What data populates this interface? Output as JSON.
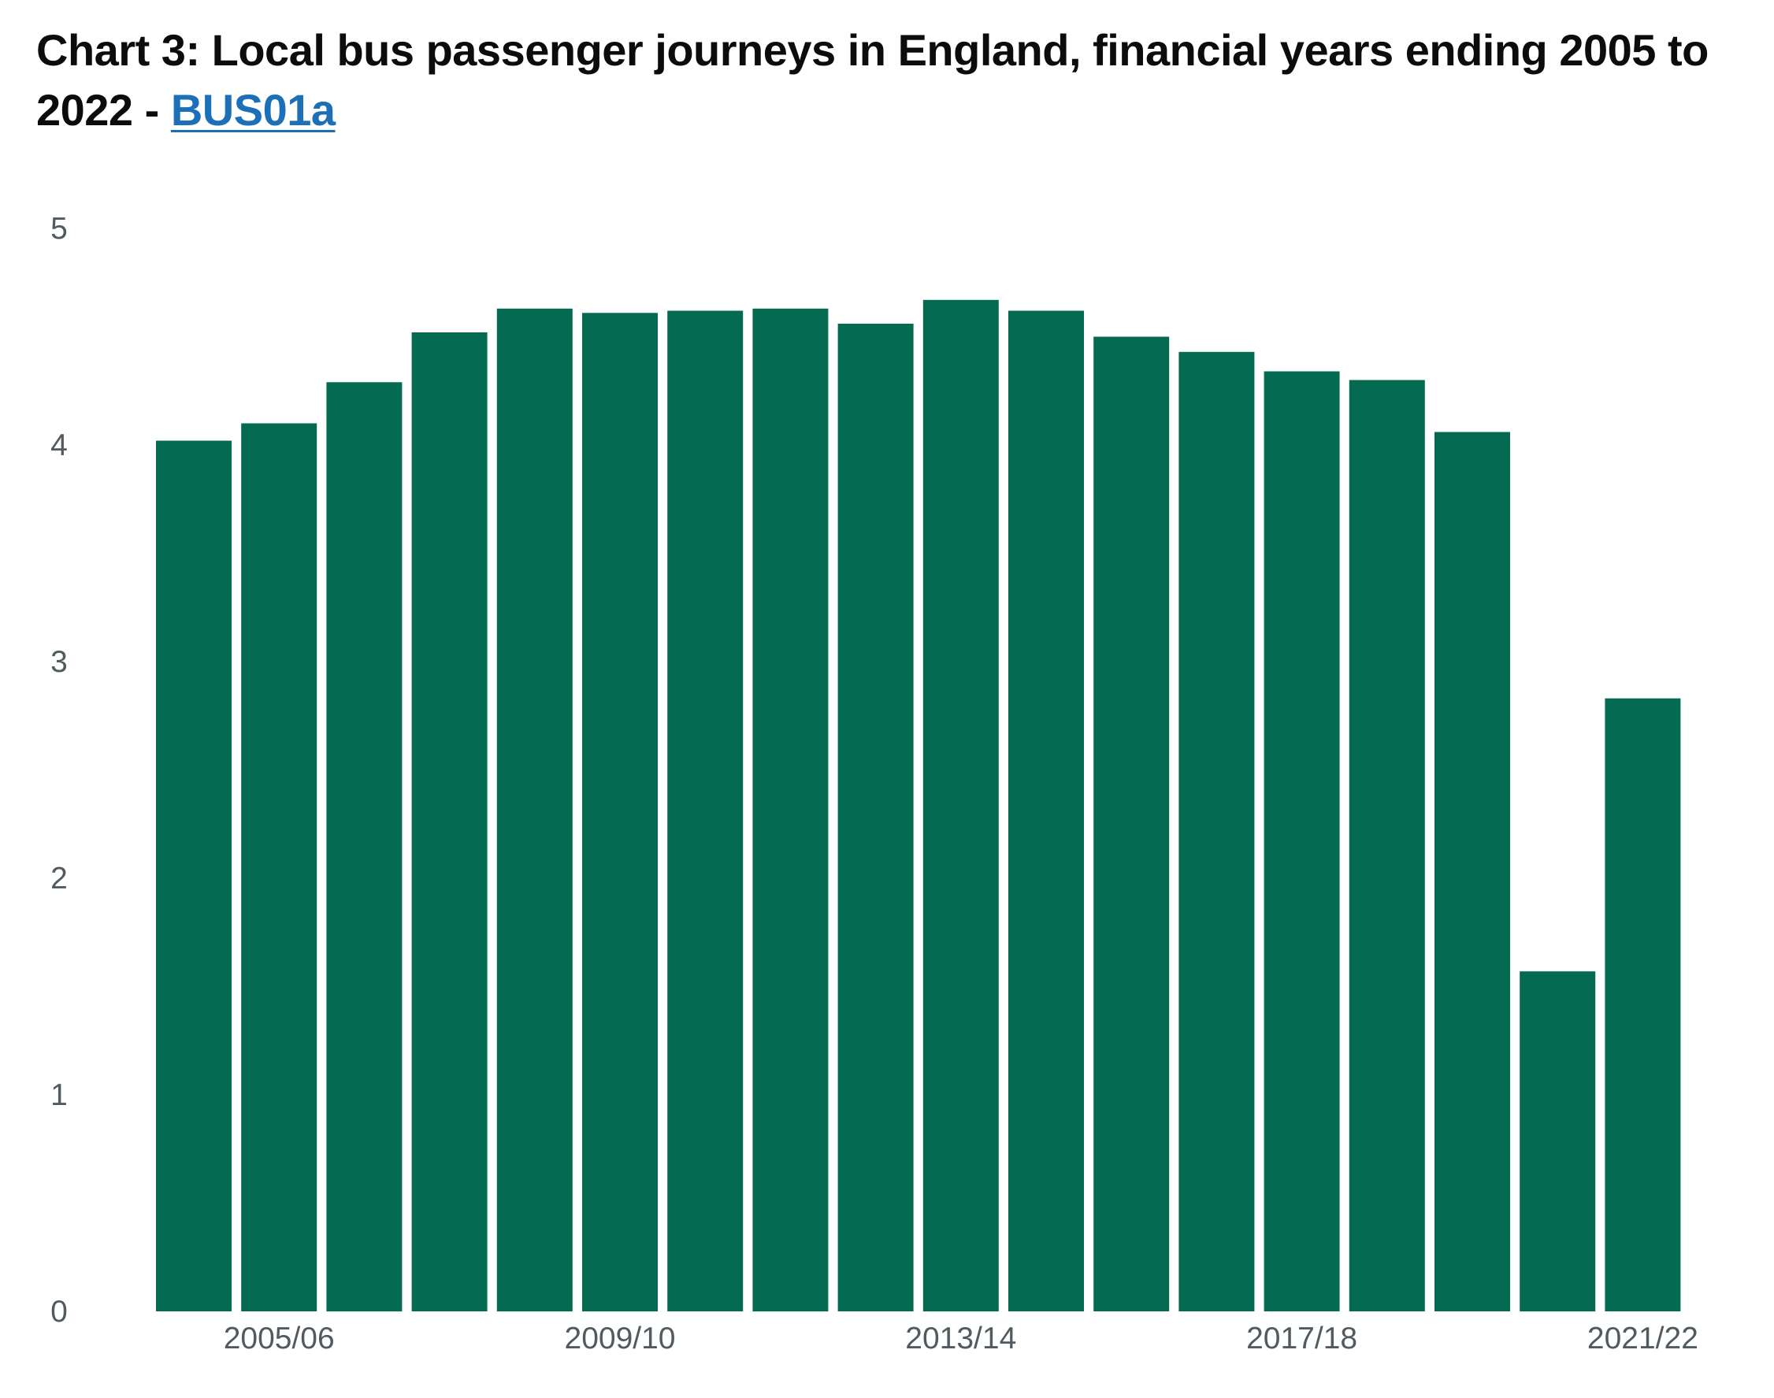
{
  "header": {
    "title_prefix": "Chart 3: Local bus passenger journeys in England, financial years ending 2005 to 2022 - ",
    "title_link": "BUS01a"
  },
  "colors": {
    "bar": "#046a52",
    "link": "#1d70b8",
    "text": "#0b0c0c",
    "tick": "#505a5f"
  },
  "chart_data": {
    "type": "bar",
    "title": "Chart 3: Local bus passenger journeys in England, financial years ending 2005 to 2022 - BUS01a",
    "xlabel": "",
    "ylabel": "",
    "categories": [
      "2004/05",
      "2005/06",
      "2006/07",
      "2007/08",
      "2008/09",
      "2009/10",
      "2010/11",
      "2011/12",
      "2012/13",
      "2013/14",
      "2014/15",
      "2015/16",
      "2016/17",
      "2017/18",
      "2018/19",
      "2019/20",
      "2020/21",
      "2021/22"
    ],
    "x_tick_labels": [
      "2005/06",
      "2009/10",
      "2013/14",
      "2017/18",
      "2021/22"
    ],
    "values": [
      4.02,
      4.1,
      4.29,
      4.52,
      4.63,
      4.61,
      4.62,
      4.63,
      4.56,
      4.67,
      4.62,
      4.5,
      4.43,
      4.34,
      4.3,
      4.06,
      1.57,
      2.83
    ],
    "ylim": [
      0,
      5
    ],
    "y_ticks": [
      0,
      1,
      2,
      3,
      4,
      5
    ],
    "grid": false,
    "legend": "none"
  }
}
